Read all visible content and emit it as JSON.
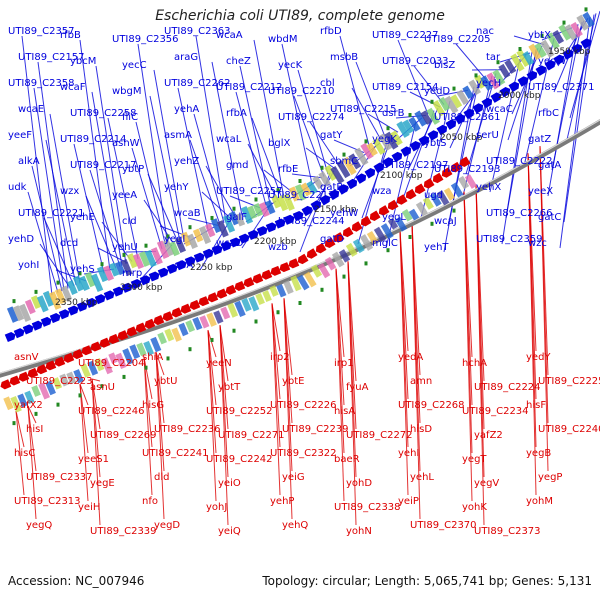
{
  "title": "Escherichia coli UTI89, complete genome",
  "footer_left": "Accession: NC_007946",
  "footer_right": "Topology: circular; Length: 5,065,741 bp; Genes: 5,131",
  "colors": {
    "forward_genes": "#0000dd",
    "reverse_genes": "#dd0000",
    "rna_forward": "#66aaee",
    "rna_reverse": "#ee88cc",
    "backbone": "#888888",
    "ticks": "#228822"
  },
  "scale_labels": [
    "1950 kbp",
    "2000 kbp",
    "2050 kbp",
    "2100 kbp",
    "2150 kbp",
    "2200 kbp",
    "2250 kbp",
    "2300 kbp",
    "2350 kbp"
  ],
  "forward_labels": [
    "UTI89_C2357",
    "rfbB",
    "UTI89_C2356",
    "UTI89_C2363",
    "wcaA",
    "wbdM",
    "rfbD",
    "UTI89_C2227",
    "UTI89_C2205",
    "nac",
    "ybtX",
    "UTI89_C2157",
    "ybcM",
    "yecC",
    "araG",
    "cheZ",
    "yecK",
    "msbB",
    "UTI89_C2033",
    "bisZ",
    "tar",
    "yegW",
    "UTI89_C2358",
    "wcaF",
    "wbgM",
    "UTI89_C2262",
    "UTI89_C2212",
    "UTI89_C2210",
    "cbl",
    "UTI89_C2154",
    "yedD",
    "yecH",
    "UTI89_C2371",
    "wcaE",
    "UTI89_C2258",
    "fliC",
    "yehA",
    "rfbA",
    "UTI89_C2274",
    "UTI89_C2215",
    "dsrB",
    "UTI89_C2361",
    "wcaC",
    "rfbC",
    "yeeF",
    "UTI89_C2214",
    "asnW",
    "asmA",
    "wcaL",
    "bglX",
    "gatY",
    "yegK",
    "ybtS",
    "serU",
    "gatZ",
    "alkA",
    "UTI89_C2217",
    "ybtP",
    "yehZ",
    "gmd",
    "rfbE",
    "sbmC",
    "UTI89_C2197",
    "UTI89_C2193",
    "UTI89_C2222",
    "gatA",
    "udk",
    "wzx",
    "yeeA",
    "yehY",
    "UTI89_C2257",
    "UTI89_C2213",
    "gatB",
    "wza",
    "ugd",
    "yehX",
    "yeeX",
    "UTI89_C2221",
    "yehE",
    "cld",
    "wcaB",
    "galF",
    "UTI89_C2244",
    "yehW",
    "yegL",
    "wcaJ",
    "UTI89_C2266",
    "gatC",
    "yehD",
    "dcd",
    "yehU",
    "yegI",
    "wcaD",
    "wzb",
    "gatD",
    "mglC",
    "yehT",
    "UTI89_C2359",
    "wzc",
    "yohI",
    "yehS",
    "mrp",
    "cirA"
  ],
  "reverse_labels": [
    "asnV",
    "UTI89_C2204",
    "shiA",
    "yeeN",
    "irp2",
    "irp1",
    "yedA",
    "hchA",
    "yedY",
    "UTI89_C2223",
    "asnU",
    "ybtU",
    "ybtT",
    "ybtE",
    "fyuA",
    "amn",
    "UTI89_C2224",
    "UTI89_C2225",
    "yafX2",
    "UTI89_C2246",
    "hisG",
    "UTI89_C2252",
    "UTI89_C2226",
    "hisA",
    "UTI89_C2268",
    "UTI89_C2234",
    "hisF",
    "hisI",
    "UTI89_C2269",
    "UTI89_C2236",
    "UTI89_C2271",
    "UTI89_C2239",
    "UTI89_C2272",
    "hisD",
    "yafZ2",
    "UTI89_C2240",
    "hisC",
    "yeeS1",
    "UTI89_C2241",
    "UTI89_C2242",
    "UTI89_C2322",
    "baeR",
    "yehI",
    "yegT",
    "yegB",
    "UTI89_C2337",
    "yegE",
    "dld",
    "yeiO",
    "yeiG",
    "yohD",
    "yehL",
    "yegV",
    "yegP",
    "UTI89_C2313",
    "yeiH",
    "nfo",
    "yohJ",
    "yehP",
    "UTI89_C2338",
    "yeiP",
    "yohK",
    "yohM",
    "yegQ",
    "UTI89_C2339",
    "yegD",
    "yeiQ",
    "yehQ",
    "yohN",
    "UTI89_C2370",
    "UTI89_C2373"
  ]
}
